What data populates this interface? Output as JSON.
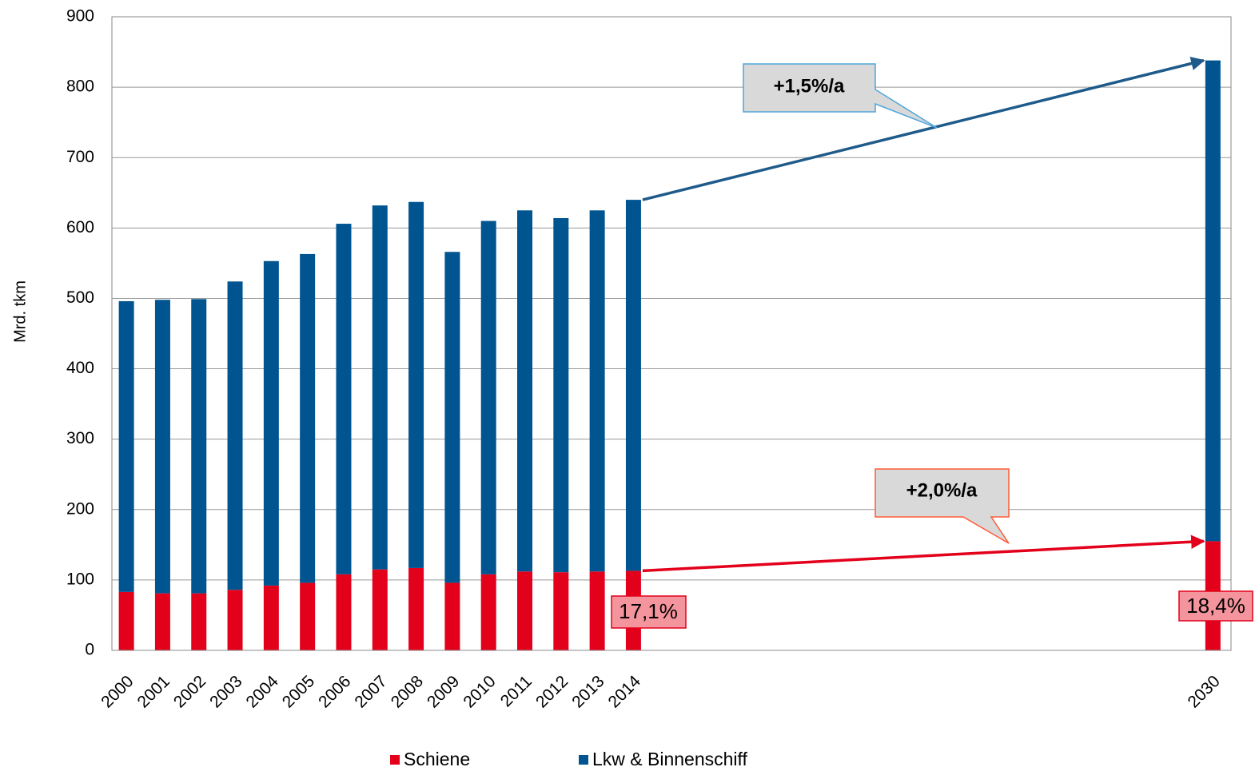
{
  "chart_data": {
    "type": "stacked_bar",
    "y_label": "Mrd. tkm",
    "x": [
      2000,
      2001,
      2002,
      2003,
      2004,
      2005,
      2006,
      2007,
      2008,
      2009,
      2010,
      2011,
      2012,
      2013,
      2014,
      2030
    ],
    "xlim": [
      1999.6,
      2030.5
    ],
    "series": [
      {
        "name": "Schiene",
        "color": "#e3001b",
        "values": [
          83,
          81,
          81,
          86,
          92,
          96,
          108,
          115,
          117,
          96,
          108,
          112,
          111,
          112,
          113,
          155
        ]
      },
      {
        "name": "Lkw & Binnenschiff",
        "color": "#005591",
        "values": [
          413,
          417,
          418,
          438,
          461,
          467,
          498,
          517,
          520,
          470,
          502,
          513,
          503,
          513,
          527,
          683
        ]
      }
    ],
    "ylim": [
      0,
      900
    ],
    "yticks": [
      0,
      100,
      200,
      300,
      400,
      500,
      600,
      700,
      800,
      900
    ],
    "grid": true,
    "annotations": [
      "+1,5%/a",
      "+2,0%/a",
      "17,1%",
      "18,4%"
    ]
  }
}
